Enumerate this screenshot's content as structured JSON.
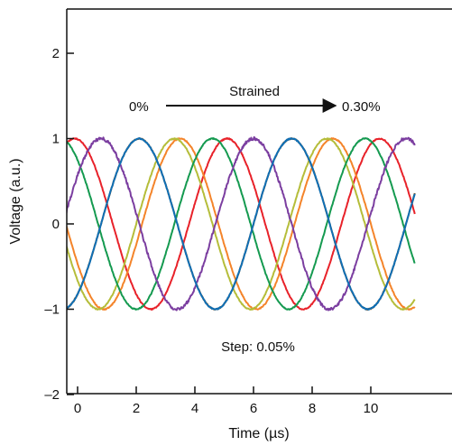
{
  "chart_data": {
    "type": "line",
    "title": "",
    "xlabel": "Time (µs)",
    "ylabel": "Voltage (a.u.)",
    "xlim": [
      0,
      11
    ],
    "ylim": [
      -2,
      2.5
    ],
    "xticks": [
      0,
      2,
      4,
      6,
      8,
      10
    ],
    "yticks": [
      -2,
      -1,
      0,
      1,
      2
    ],
    "xtick_labels": [
      "0",
      "2",
      "4",
      "6",
      "8",
      "10"
    ],
    "ytick_labels": [
      "–2",
      "–1",
      "0",
      "1",
      "2"
    ],
    "grid": false,
    "period_us": 5.2,
    "series": [
      {
        "color": "#e8222a",
        "peak_x": -0.1
      },
      {
        "color": "#f4842a",
        "peak_x": 8.7
      },
      {
        "color": "#b5bd3a",
        "peak_x": 3.3
      },
      {
        "color": "#159a50",
        "peak_x": 4.6
      },
      {
        "color": "#7d4f1f",
        "peak_x": 7.3
      },
      {
        "color": "#7b3ea0",
        "peak_x": 6.0
      },
      {
        "color": "#0f6fb5",
        "peak_x": 2.1
      }
    ],
    "annotations": {
      "start_label": "0%",
      "arrow_label": "Strained",
      "end_label": "0.30%",
      "step_label": "Step: 0.05%"
    }
  }
}
